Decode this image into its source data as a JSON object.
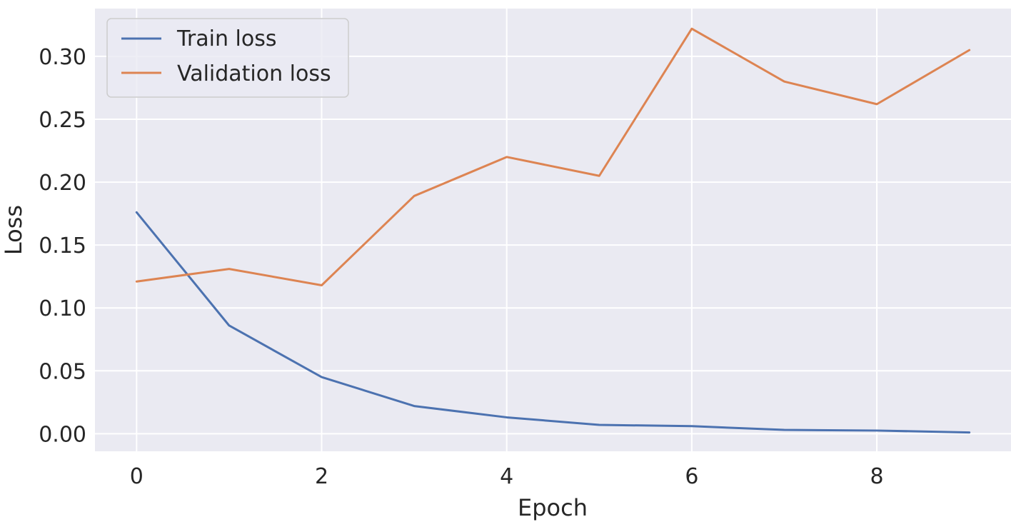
{
  "chart_data": {
    "type": "line",
    "title": "",
    "xlabel": "Epoch",
    "ylabel": "Loss",
    "x": [
      0,
      1,
      2,
      3,
      4,
      5,
      6,
      7,
      8,
      9
    ],
    "xlim": [
      -0.45,
      9.45
    ],
    "ylim": [
      -0.014,
      0.338
    ],
    "xticks": [
      0,
      2,
      4,
      6,
      8
    ],
    "xtick_labels": [
      "0",
      "2",
      "4",
      "6",
      "8"
    ],
    "yticks": [
      0.0,
      0.05,
      0.1,
      0.15,
      0.2,
      0.25,
      0.3
    ],
    "ytick_labels": [
      "0.00",
      "0.05",
      "0.10",
      "0.15",
      "0.20",
      "0.25",
      "0.30"
    ],
    "grid": true,
    "legend_position": "top-left",
    "background": "#eaeaf2",
    "series": [
      {
        "name": "Train loss",
        "color": "#4c72b0",
        "values": [
          0.176,
          0.086,
          0.045,
          0.022,
          0.013,
          0.007,
          0.006,
          0.003,
          0.0025,
          0.001
        ]
      },
      {
        "name": "Validation loss",
        "color": "#dd8452",
        "values": [
          0.121,
          0.131,
          0.118,
          0.189,
          0.22,
          0.205,
          0.322,
          0.28,
          0.262,
          0.305
        ]
      }
    ]
  }
}
